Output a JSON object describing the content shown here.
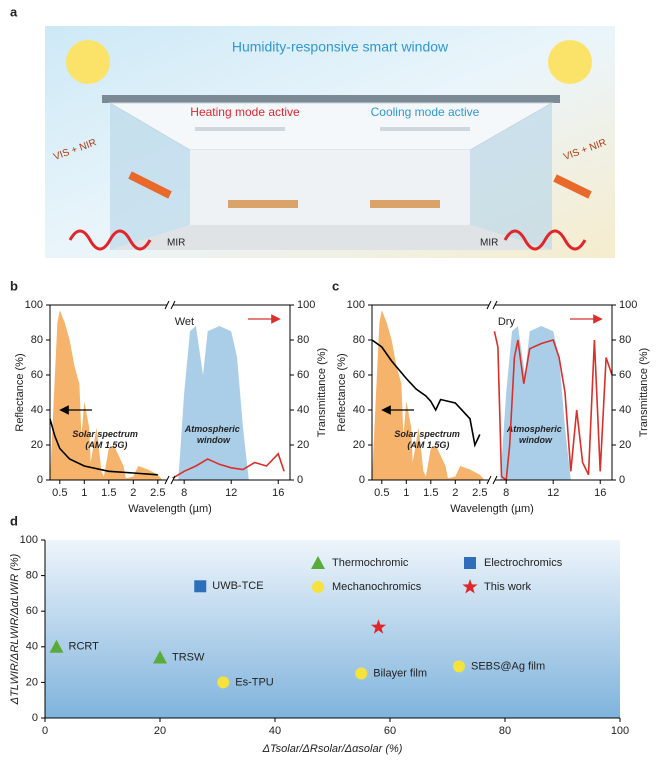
{
  "illustration": {
    "panel_label": "a",
    "title": "Humidity-responsive smart window",
    "heating": "Heating mode active",
    "cooling": "Cooling mode active",
    "input_left": "VIS + NIR",
    "input_right": "VIS + NIR",
    "mir_left": "MIR",
    "mir_right": "MIR"
  },
  "chart_data": [
    {
      "type": "line",
      "panel_label": "b",
      "annotation": "Wet",
      "xlabel": "Wavelength (µm)",
      "ylabel": "Reflectance (%)",
      "y2label": "Transmittance (%)",
      "xlim": [
        0.3,
        17
      ],
      "xbreak": [
        2.7,
        7
      ],
      "xticks": [
        0.5,
        1,
        1.5,
        2,
        2.5,
        8,
        12,
        16
      ],
      "ylim": [
        0,
        100
      ],
      "yticks": [
        0,
        20,
        40,
        60,
        80,
        100
      ],
      "y2lim": [
        0,
        100
      ],
      "y2ticks": [
        0,
        20,
        40,
        60,
        80,
        100
      ],
      "series": [
        {
          "name": "Solar spectrum (AM 1.5G)",
          "color": "#f29a3a",
          "area": true,
          "x": [
            0.3,
            0.4,
            0.45,
            0.5,
            0.6,
            0.7,
            0.8,
            0.9,
            0.94,
            1.0,
            1.1,
            1.13,
            1.25,
            1.35,
            1.4,
            1.5,
            1.6,
            1.8,
            1.85,
            2.0,
            2.1,
            2.3,
            2.5,
            2.6
          ],
          "values": [
            0,
            60,
            90,
            97,
            90,
            80,
            65,
            55,
            25,
            45,
            30,
            10,
            30,
            5,
            2,
            18,
            20,
            8,
            1,
            2,
            8,
            6,
            3,
            0
          ]
        },
        {
          "name": "Atmospheric window",
          "color": "#8fbde0",
          "area": true,
          "x": [
            7.5,
            8,
            8.5,
            9,
            9.6,
            10,
            11,
            12,
            12.5,
            13,
            13.5
          ],
          "values": [
            0,
            50,
            85,
            88,
            60,
            85,
            88,
            85,
            70,
            30,
            0
          ]
        },
        {
          "name": "Reflectance",
          "color": "#000000",
          "x": [
            0.3,
            0.4,
            0.5,
            0.7,
            1.0,
            1.5,
            2.0,
            2.5
          ],
          "values": [
            35,
            25,
            18,
            12,
            8,
            5,
            4,
            3
          ]
        },
        {
          "name": "Transmittance",
          "color": "#d8302a",
          "axis": "y2",
          "x": [
            7,
            8,
            9,
            10,
            11,
            12,
            13,
            14,
            15,
            16,
            16.5
          ],
          "values": [
            1,
            5,
            8,
            12,
            9,
            7,
            6,
            10,
            8,
            15,
            5
          ]
        }
      ]
    },
    {
      "type": "line",
      "panel_label": "c",
      "annotation": "Dry",
      "xlabel": "Wavelength (µm)",
      "ylabel": "Reflectance (%)",
      "y2label": "Transmittance (%)",
      "xlim": [
        0.3,
        17
      ],
      "xbreak": [
        2.7,
        7
      ],
      "xticks": [
        0.5,
        1,
        1.5,
        2,
        2.5,
        8,
        12,
        16
      ],
      "ylim": [
        0,
        100
      ],
      "yticks": [
        0,
        20,
        40,
        60,
        80,
        100
      ],
      "y2lim": [
        0,
        100
      ],
      "y2ticks": [
        0,
        20,
        40,
        60,
        80,
        100
      ],
      "series": [
        {
          "name": "Solar spectrum (AM 1.5G)",
          "color": "#f29a3a",
          "area": true,
          "x": [
            0.3,
            0.4,
            0.45,
            0.5,
            0.6,
            0.7,
            0.8,
            0.9,
            0.94,
            1.0,
            1.1,
            1.13,
            1.25,
            1.35,
            1.4,
            1.5,
            1.6,
            1.8,
            1.85,
            2.0,
            2.1,
            2.3,
            2.5,
            2.6
          ],
          "values": [
            0,
            60,
            90,
            97,
            90,
            80,
            65,
            55,
            25,
            45,
            30,
            10,
            30,
            5,
            2,
            18,
            20,
            8,
            1,
            2,
            8,
            6,
            3,
            0
          ]
        },
        {
          "name": "Atmospheric window",
          "color": "#8fbde0",
          "area": true,
          "x": [
            7.5,
            8,
            8.5,
            9,
            9.6,
            10,
            11,
            12,
            12.5,
            13,
            13.5
          ],
          "values": [
            0,
            50,
            85,
            88,
            60,
            85,
            88,
            85,
            70,
            30,
            0
          ]
        },
        {
          "name": "Reflectance",
          "color": "#000000",
          "x": [
            0.3,
            0.5,
            0.7,
            1.0,
            1.2,
            1.4,
            1.5,
            1.6,
            1.7,
            2.0,
            2.3,
            2.4,
            2.5
          ],
          "values": [
            80,
            76,
            68,
            58,
            52,
            48,
            45,
            40,
            46,
            44,
            35,
            20,
            26
          ]
        },
        {
          "name": "Transmittance",
          "color": "#d8302a",
          "axis": "y2",
          "x": [
            7,
            7.3,
            7.6,
            8,
            8.3,
            8.7,
            9,
            9.5,
            10,
            11,
            12,
            12.5,
            13,
            13.5,
            14,
            14.5,
            15,
            15.5,
            16,
            16.5,
            17
          ],
          "values": [
            85,
            76,
            2,
            0,
            20,
            70,
            80,
            55,
            75,
            78,
            80,
            70,
            50,
            5,
            40,
            10,
            3,
            80,
            5,
            70,
            60
          ]
        }
      ]
    },
    {
      "type": "scatter",
      "panel_label": "d",
      "xlabel": "ΔTsolar/ΔRsolar/Δαsolar (%)",
      "ylabel": "ΔTLWIR/ΔRLWIR/ΔαLWIR (%)",
      "xlim": [
        0,
        100
      ],
      "xticks": [
        0,
        20,
        40,
        60,
        80,
        100
      ],
      "ylim": [
        0,
        100
      ],
      "yticks": [
        0,
        20,
        40,
        60,
        80,
        100
      ],
      "series": [
        {
          "name": "Thermochromic",
          "color": "#5aac3a",
          "marker": "triangle",
          "x": [
            2,
            20
          ],
          "values": [
            40,
            34
          ],
          "labels": [
            "RCRT",
            "TRSW"
          ]
        },
        {
          "name": "Electrochromics",
          "color": "#2f6fba",
          "marker": "square",
          "x": [
            27
          ],
          "values": [
            74
          ],
          "labels": [
            "UWB-TCE"
          ]
        },
        {
          "name": "Mechanochromics",
          "color": "#f5e23c",
          "marker": "circle",
          "x": [
            31,
            55,
            72
          ],
          "values": [
            20,
            25,
            29
          ],
          "labels": [
            "Es-TPU",
            "Bilayer film",
            "SEBS@Ag film"
          ]
        },
        {
          "name": "This work",
          "color": "#e0262b",
          "marker": "star",
          "x": [
            58
          ],
          "values": [
            51
          ]
        }
      ]
    }
  ]
}
